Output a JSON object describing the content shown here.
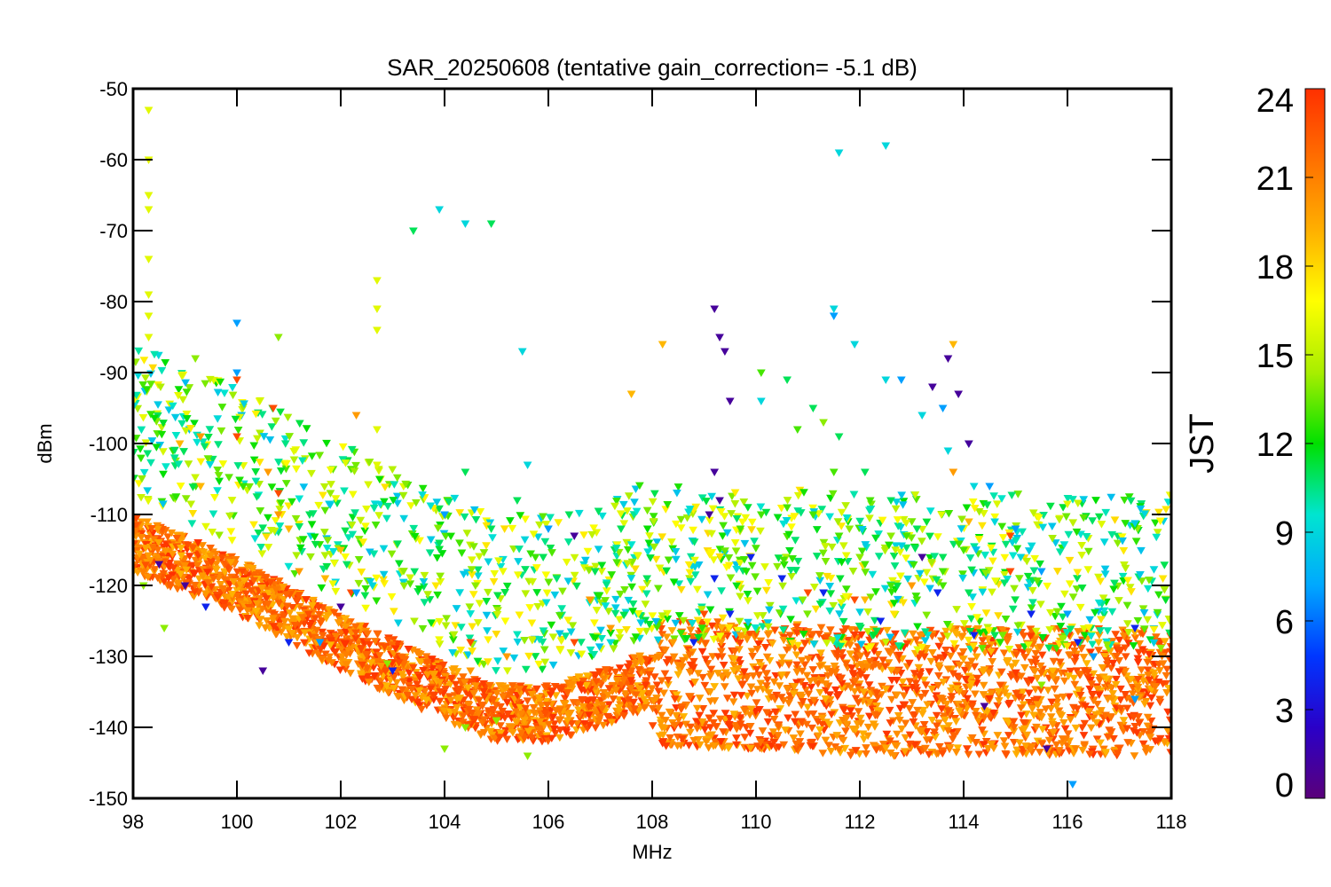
{
  "chart_data": {
    "type": "scatter",
    "title": "SAR_20250608 (tentative gain_correction= -5.1 dB)",
    "xlabel": "MHz",
    "ylabel": "dBm",
    "xlim": [
      98,
      118
    ],
    "ylim": [
      -150,
      -50
    ],
    "xticks": [
      98,
      100,
      102,
      104,
      106,
      108,
      110,
      112,
      114,
      116,
      118
    ],
    "yticks": [
      -50,
      -60,
      -70,
      -80,
      -90,
      -100,
      -110,
      -120,
      -130,
      -140,
      -150
    ],
    "grid": false,
    "marker": "inverted-triangle",
    "color_variable": "JST",
    "colorbar": {
      "label": "JST",
      "range": [
        0,
        24
      ],
      "ticks": [
        24,
        21,
        18,
        15,
        12,
        9,
        6,
        3,
        0
      ],
      "colormap": "rainbow",
      "colors": [
        "#5a007a",
        "#2a00c8",
        "#0036ff",
        "#00a8ff",
        "#00e5d0",
        "#00e000",
        "#a8ee00",
        "#ffff00",
        "#ffb000",
        "#ff7000",
        "#ff3000"
      ]
    },
    "noise_floor": {
      "x": [
        98,
        100,
        102,
        104,
        105,
        106,
        107,
        108,
        108.01,
        110,
        112,
        114,
        116,
        118
      ],
      "y": [
        -114,
        -120,
        -128,
        -135,
        -138,
        -138,
        -136,
        -133,
        -134,
        -134,
        -135,
        -135,
        -135,
        -135
      ]
    },
    "series": [
      {
        "jst": 23,
        "x": [
          100.0,
          100.0,
          100.7,
          100.8,
          102.2,
          114.9,
          114.9,
          111.9,
          111.0,
          104.5,
          106.5,
          109.0
        ],
        "y": [
          -91,
          -99,
          -95,
          -107,
          -121,
          -113,
          -118,
          -122,
          -121,
          -128,
          -128,
          -124
        ]
      },
      {
        "jst": 20,
        "x": [
          100.6,
          100.8,
          99.3,
          101.2,
          102.3,
          104.5,
          105.2,
          106.8,
          107.2,
          108.4,
          109.7,
          113.0,
          113.8
        ],
        "y": [
          -104,
          -110,
          -99,
          -118,
          -96,
          -132,
          -130,
          -122,
          -126,
          -128,
          -127,
          -120,
          -104
        ]
      },
      {
        "jst": 19,
        "x": [
          98.9,
          99.3,
          101.0,
          102.0,
          107.6,
          108.2,
          113.8,
          112.1,
          114.1,
          116.6,
          101.7
        ],
        "y": [
          -100,
          -106,
          -112,
          -115,
          -93,
          -86,
          -86,
          -122,
          -111,
          -128,
          -119
        ]
      },
      {
        "jst": 16,
        "x": [
          98.3,
          98.3,
          98.3,
          98.3,
          98.3,
          98.3,
          98.3,
          98.3,
          102.7,
          102.7,
          102.7,
          102.7,
          102.7
        ],
        "y": [
          -53,
          -60,
          -65,
          -67,
          -74,
          -79,
          -82,
          -85,
          -77,
          -81,
          -84,
          -98,
          -103
        ]
      },
      {
        "jst": 14,
        "x": [
          98.2,
          99.2,
          104.4,
          105.6,
          110.9,
          111.8,
          111.3,
          112.6,
          112.0,
          98.6,
          102.9,
          104.0,
          105.0,
          115.5,
          100.8
        ],
        "y": [
          -120,
          -88,
          -140,
          -144,
          -122,
          -112,
          -97,
          -113,
          -116,
          -126,
          -131,
          -143,
          -139,
          -134,
          -85
        ]
      },
      {
        "jst": 13,
        "x": [
          109.7,
          110.1,
          110.6,
          111.1,
          111.6,
          112.1,
          112.6,
          113.1,
          113.6,
          114.0,
          110.1,
          110.8,
          111.5,
          112.2,
          112.9,
          113.6
        ],
        "y": [
          -112,
          -110,
          -109,
          -110,
          -113,
          -117,
          -120,
          -122,
          -120,
          -115,
          -90,
          -98,
          -104,
          -108,
          -113,
          -118
        ]
      },
      {
        "jst": 11,
        "x": [
          101.4,
          103.4,
          104.9,
          103.9,
          104.4,
          104.9,
          105.4,
          105.9,
          106.4,
          106.9,
          107.4,
          107.9,
          110.6,
          111.1,
          111.6,
          112.1,
          112.6,
          113.1,
          113.6,
          114.1,
          114.6
        ],
        "y": [
          -110,
          -70,
          -69,
          -114,
          -104,
          -112,
          -108,
          -116,
          -110,
          -118,
          -112,
          -119,
          -91,
          -95,
          -99,
          -104,
          -108,
          -112,
          -116,
          -121,
          -127
        ]
      },
      {
        "jst": 9,
        "x": [
          103.9,
          104.4,
          105.6,
          111.6,
          112.5,
          110.1,
          111.5,
          111.9,
          112.5,
          113.2,
          113.7,
          114.2,
          114.6,
          115.1,
          105.5
        ],
        "y": [
          -67,
          -69,
          -103,
          -59,
          -58,
          -94,
          -81,
          -86,
          -91,
          -96,
          -101,
          -106,
          -111,
          -116,
          -87
        ]
      },
      {
        "jst": 7,
        "x": [
          100.0,
          100.0,
          102.3,
          101.6,
          104.0,
          106.0,
          111.5,
          112.8,
          113.6,
          114.1,
          114.5,
          115.0,
          115.5,
          116.0,
          116.5,
          117.3,
          116.1
        ],
        "y": [
          -83,
          -90,
          -121,
          -128,
          -110,
          -112,
          -82,
          -91,
          -95,
          -100,
          -106,
          -112,
          -118,
          -124,
          -130,
          -136,
          -148
        ]
      },
      {
        "jst": 4,
        "x": [
          109.2,
          109.5,
          108.8,
          109.9,
          110.5,
          111.3,
          112.4,
          113.5,
          114.2,
          115.3,
          116.2,
          117.3,
          99.4,
          101.0,
          103.0
        ],
        "y": [
          -119,
          -124,
          -128,
          -116,
          -119,
          -121,
          -125,
          -121,
          -127,
          -124,
          -128,
          -126,
          -123,
          -128,
          -132
        ]
      },
      {
        "jst": 1,
        "x": [
          109.2,
          109.3,
          109.4,
          109.5,
          109.2,
          109.1,
          109.3,
          113.4,
          113.7,
          113.9,
          114.1,
          113.2,
          106.5,
          102.0,
          100.5,
          114.4,
          115.6,
          99.0,
          98.5
        ],
        "y": [
          -81,
          -85,
          -87,
          -94,
          -104,
          -110,
          -108,
          -92,
          -88,
          -93,
          -100,
          -116,
          -113,
          -123,
          -132,
          -137,
          -143,
          -120,
          -117
        ]
      }
    ]
  }
}
